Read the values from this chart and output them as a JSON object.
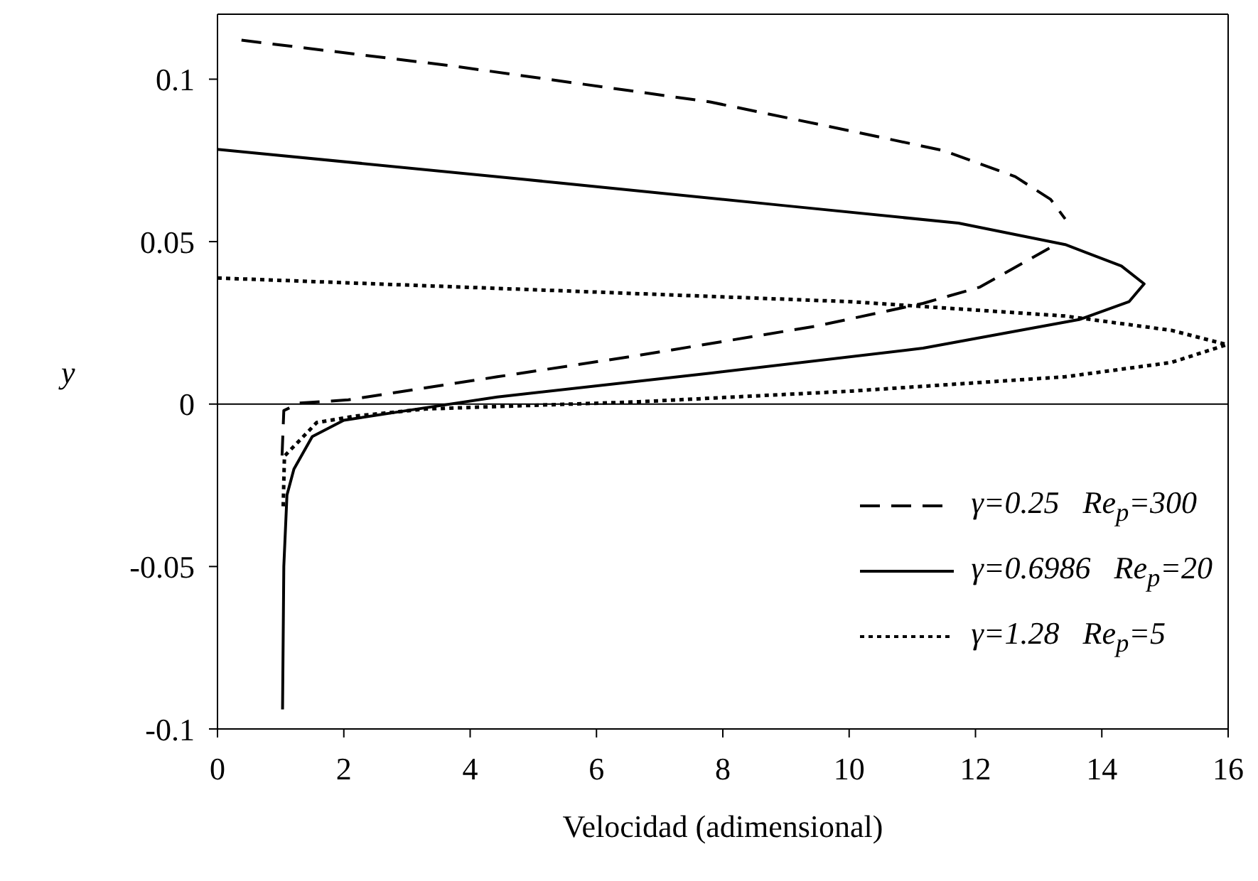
{
  "chart_data": {
    "type": "line",
    "xlabel": "Velocidad (adimensional)",
    "ylabel": "y",
    "xlim": [
      0,
      16
    ],
    "xticks": [
      0,
      2,
      4,
      6,
      8,
      10,
      12,
      14,
      16
    ],
    "ylim": [
      -0.1,
      0.12
    ],
    "yticks": [
      -0.1,
      -0.05,
      0,
      0.05,
      0.1
    ],
    "grid": false,
    "legend": "bottom right",
    "marker": "none",
    "ref_lines": [
      {
        "axis": "y",
        "value": 0,
        "label": null,
        "color": "#000000",
        "line_style": "solid"
      }
    ],
    "series": [
      {
        "name": "γ=0.25   Re$_{p}$=300",
        "color": "#000000",
        "line_style": "dashed",
        "x": [
          0.38,
          3.75,
          7.8,
          10.04,
          11.5,
          12.63,
          13.19,
          13.42,
          13.3,
          13.17,
          12.07,
          11.17,
          9.48,
          6.67,
          4.43,
          2.07,
          1.3,
          1.05,
          1.02
        ],
        "values": [
          0.112,
          0.104,
          0.093,
          0.084,
          0.078,
          0.07,
          0.063,
          0.057,
          null,
          0.048,
          0.036,
          0.031,
          0.024,
          0.015,
          0.0084,
          0.0013,
          0.0003,
          -0.002,
          -0.017
        ]
      },
      {
        "name": "γ=0.6986   Re$_{p}$=20",
        "color": "#000000",
        "line_style": "solid",
        "x": [
          0,
          4.43,
          8.92,
          11.73,
          13.42,
          14.31,
          14.67,
          14.43,
          13.64,
          11.17,
          7.8,
          4.43,
          3.0,
          2.0,
          1.5,
          1.21,
          1.1,
          1.05,
          1.03
        ],
        "values": [
          0.0784,
          0.07,
          0.0612,
          0.0557,
          0.0491,
          0.0425,
          0.037,
          0.0315,
          0.026,
          0.0172,
          0.0095,
          0.0022,
          -0.002,
          -0.005,
          -0.01,
          -0.02,
          -0.028,
          -0.05,
          -0.094
        ]
      },
      {
        "name": "γ=1.28   Re$_{p}$=5",
        "color": "#000000",
        "line_style": "dotted",
        "x": [
          0,
          5.55,
          10.04,
          13.42,
          15.1,
          15.98,
          15.1,
          13.42,
          10.04,
          6.67,
          3.3,
          2.18,
          1.57,
          1.33,
          1.06,
          1.04
        ],
        "values": [
          0.0388,
          0.0348,
          0.0315,
          0.0271,
          0.0227,
          0.0183,
          0.0128,
          0.0084,
          0.004,
          0.0007,
          -0.0015,
          -0.0037,
          -0.0057,
          -0.0106,
          -0.016,
          -0.032
        ]
      }
    ]
  }
}
